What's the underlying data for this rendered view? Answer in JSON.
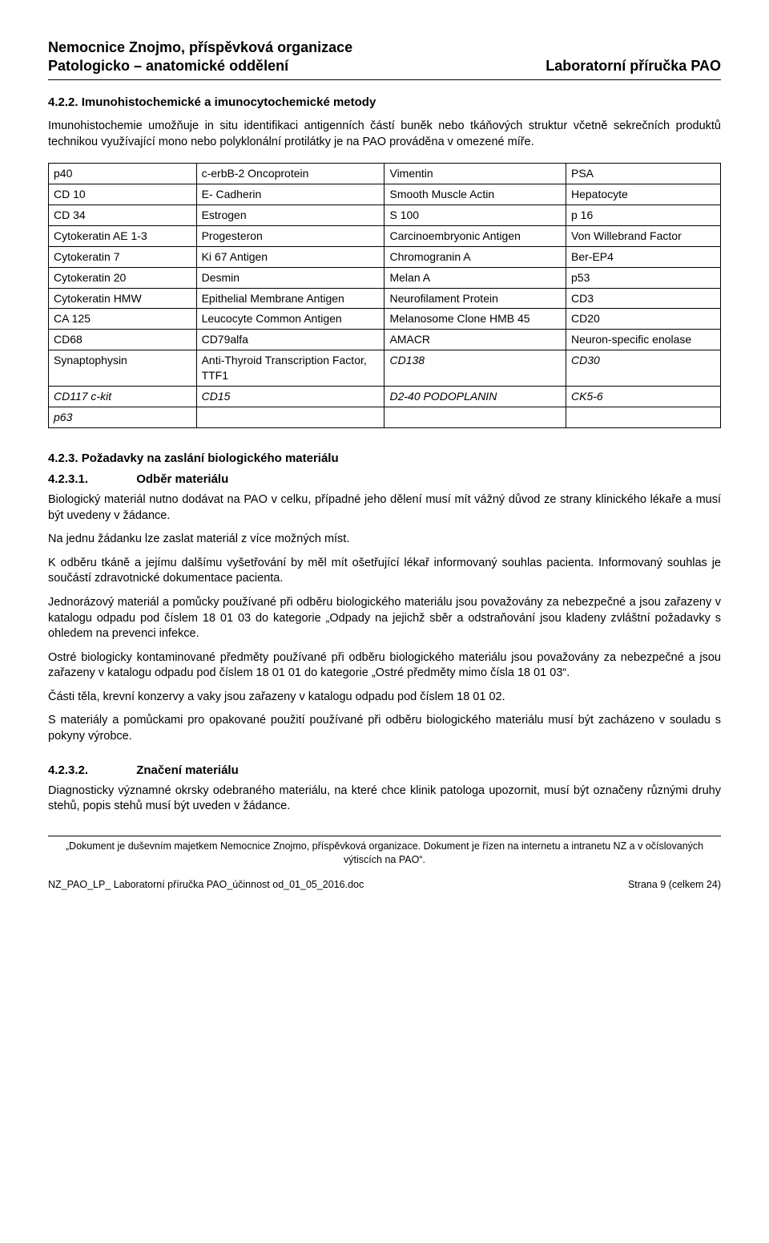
{
  "header": {
    "org_line1": "Nemocnice Znojmo, příspěvková organizace",
    "org_line2": "Patologicko – anatomické oddělení",
    "doc_title": "Laboratorní příručka PAO"
  },
  "section422": {
    "heading": "4.2.2. Imunohistochemické a imunocytochemické metody",
    "paragraph": "Imunohistochemie umožňuje in situ identifikaci antigenních částí buněk nebo tkáňových struktur včetně sekrečních produktů technikou využívající mono nebo polyklonální protilátky je na PAO prováděna v omezené míře."
  },
  "table": {
    "rows": [
      [
        "p40",
        "c-erbB-2 Oncoprotein",
        "Vimentin",
        "PSA"
      ],
      [
        "CD 10",
        "E- Cadherin",
        "Smooth Muscle Actin",
        "Hepatocyte"
      ],
      [
        "CD 34",
        "Estrogen",
        "S 100",
        "p 16"
      ],
      [
        "Cytokeratin AE 1-3",
        "Progesteron",
        "Carcinoembryonic Antigen",
        "Von Willebrand Factor"
      ],
      [
        "Cytokeratin 7",
        "Ki 67 Antigen",
        "Chromogranin A",
        "Ber-EP4"
      ],
      [
        "Cytokeratin 20",
        "Desmin",
        "Melan A",
        "p53"
      ],
      [
        "Cytokeratin HMW",
        "Epithelial Membrane Antigen",
        "Neurofilament Protein",
        "CD3"
      ],
      [
        "CA 125",
        "Leucocyte Common Antigen",
        "Melanosome Clone HMB 45",
        "CD20"
      ],
      [
        "CD68",
        "CD79alfa",
        "AMACR",
        "Neuron-specific enolase"
      ],
      [
        "Synaptophysin",
        "Anti-Thyroid Transcription Factor, TTF1",
        "CD138",
        "CD30"
      ],
      [
        "CD117 c-kit",
        "CD15",
        "D2-40 PODOPLANIN",
        "CK5-6"
      ],
      [
        "p63",
        "",
        "",
        ""
      ]
    ],
    "italic_rows": [
      9,
      10,
      11
    ],
    "italic_cells_partial": {
      "9": [
        2,
        3
      ]
    },
    "col_widths": [
      "22%",
      "28%",
      "27%",
      "23%"
    ],
    "border_color": "#000000",
    "font_size": 14
  },
  "section423": {
    "heading": "4.2.3. Požadavky na zaslání biologického materiálu"
  },
  "section4231": {
    "heading": "4.2.3.1.",
    "heading_rest": "Odběr materiálu",
    "paras": [
      "Biologický materiál nutno dodávat na PAO v celku, případné jeho dělení musí mít vážný důvod ze strany klinického lékaře a musí být uvedeny v žádance.",
      "Na jednu žádanku lze zaslat materiál z více možných míst.",
      "K odběru tkáně a jejímu dalšímu vyšetřování by měl mít ošetřující lékař informovaný souhlas pacienta. Informovaný souhlas je součástí zdravotnické dokumentace pacienta.",
      "Jednorázový materiál a pomůcky používané při odběru biologického materiálu jsou považovány za nebezpečné a jsou zařazeny v katalogu odpadu pod číslem 18 01 03 do kategorie „Odpady na jejichž sběr a odstraňování jsou kladeny zvláštní požadavky s ohledem na prevenci infekce.",
      "Ostré biologicky kontaminované předměty používané při odběru biologického materiálu jsou považovány za nebezpečné a jsou zařazeny v katalogu odpadu pod číslem 18 01 01 do kategorie „Ostré předměty mimo čísla 18 01 03“.",
      "Části těla, krevní konzervy a vaky jsou zařazeny v katalogu odpadu pod číslem 18 01 02.",
      "S materiály a pomůckami pro opakované použití používané při odběru biologického materiálu musí být zacházeno v souladu s pokyny výrobce."
    ]
  },
  "section4232": {
    "heading": "4.2.3.2.",
    "heading_rest": "Značení materiálu",
    "para": "Diagnosticky významné okrsky odebraného materiálu, na které chce klinik patologa upozornit, musí být označeny různými druhy stehů, popis stehů musí být uveden v žádance."
  },
  "footer": {
    "note": "„Dokument  je duševním majetkem Nemocnice Znojmo, příspěvková organizace. Dokument je řízen na internetu a intranetu  NZ  a v očíslovaných výtiscích na PAO“.",
    "left": "NZ_PAO_LP_ Laboratorní příručka PAO_účinnost od_01_05_2016.doc",
    "right": "Strana 9 (celkem 24)"
  },
  "colors": {
    "text": "#000000",
    "background": "#ffffff",
    "border": "#000000"
  }
}
